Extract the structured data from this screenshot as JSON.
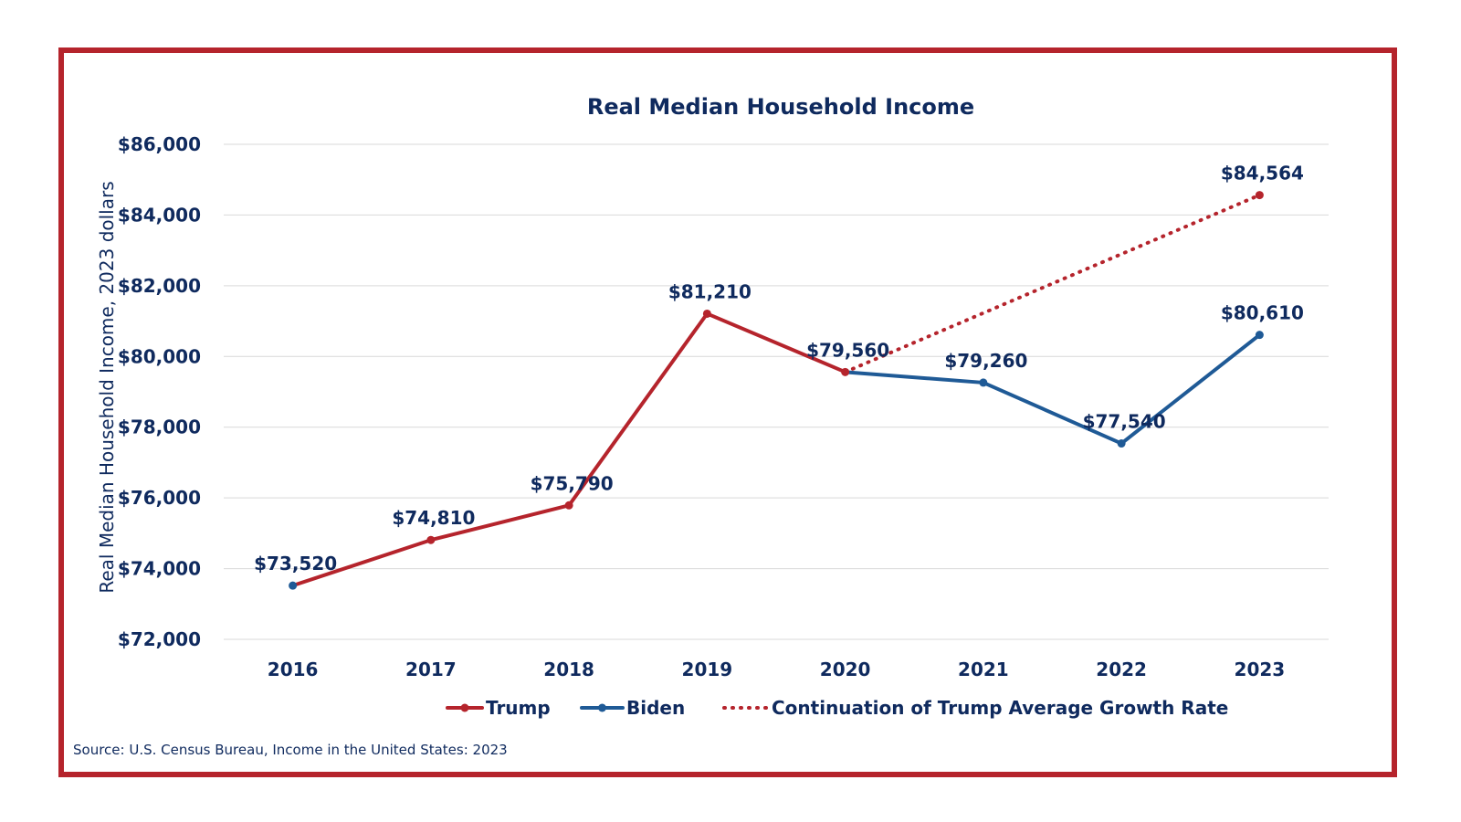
{
  "chart_data": {
    "type": "line",
    "title": "Real Median Household Income",
    "ylabel": "Real Median Household Income,  2023 dollars",
    "xlabel": "",
    "categories": [
      "2016",
      "2017",
      "2018",
      "2019",
      "2020",
      "2021",
      "2022",
      "2023"
    ],
    "ylim": [
      72000,
      86000
    ],
    "yticks": [
      72000,
      74000,
      76000,
      78000,
      80000,
      82000,
      84000,
      86000
    ],
    "ytick_labels": [
      "$72,000",
      "$74,000",
      "$76,000",
      "$78,000",
      "$80,000",
      "$82,000",
      "$84,000",
      "$86,000"
    ],
    "grid": true,
    "legend_position": "bottom",
    "series": [
      {
        "name": "Trump",
        "color": "#b5242c",
        "style": "solid",
        "points": [
          {
            "x": "2016",
            "y": 73520,
            "label": "$73,520"
          },
          {
            "x": "2017",
            "y": 74810,
            "label": "$74,810"
          },
          {
            "x": "2018",
            "y": 75790,
            "label": "$75,790"
          },
          {
            "x": "2019",
            "y": 81210,
            "label": "$81,210"
          },
          {
            "x": "2020",
            "y": 79560,
            "label": "$79,560"
          }
        ]
      },
      {
        "name": "Biden",
        "color": "#1f5a96",
        "style": "solid",
        "points": [
          {
            "x": "2020",
            "y": 79560,
            "label": ""
          },
          {
            "x": "2021",
            "y": 79260,
            "label": "$79,260"
          },
          {
            "x": "2022",
            "y": 77540,
            "label": "$77,540"
          },
          {
            "x": "2023",
            "y": 80610,
            "label": "$80,610"
          }
        ]
      },
      {
        "name": "Continuation of Trump Average Growth Rate",
        "color": "#b5242c",
        "style": "dotted",
        "points": [
          {
            "x": "2020",
            "y": 79560,
            "label": ""
          },
          {
            "x": "2023",
            "y": 84564,
            "label": "$84,564"
          }
        ]
      }
    ],
    "colors": {
      "text": "#0f2a5e",
      "grid": "#d9d9d9",
      "frame": "#b5242c"
    }
  },
  "source_text": "Source: U.S. Census Bureau, Income in the United States: 2023"
}
